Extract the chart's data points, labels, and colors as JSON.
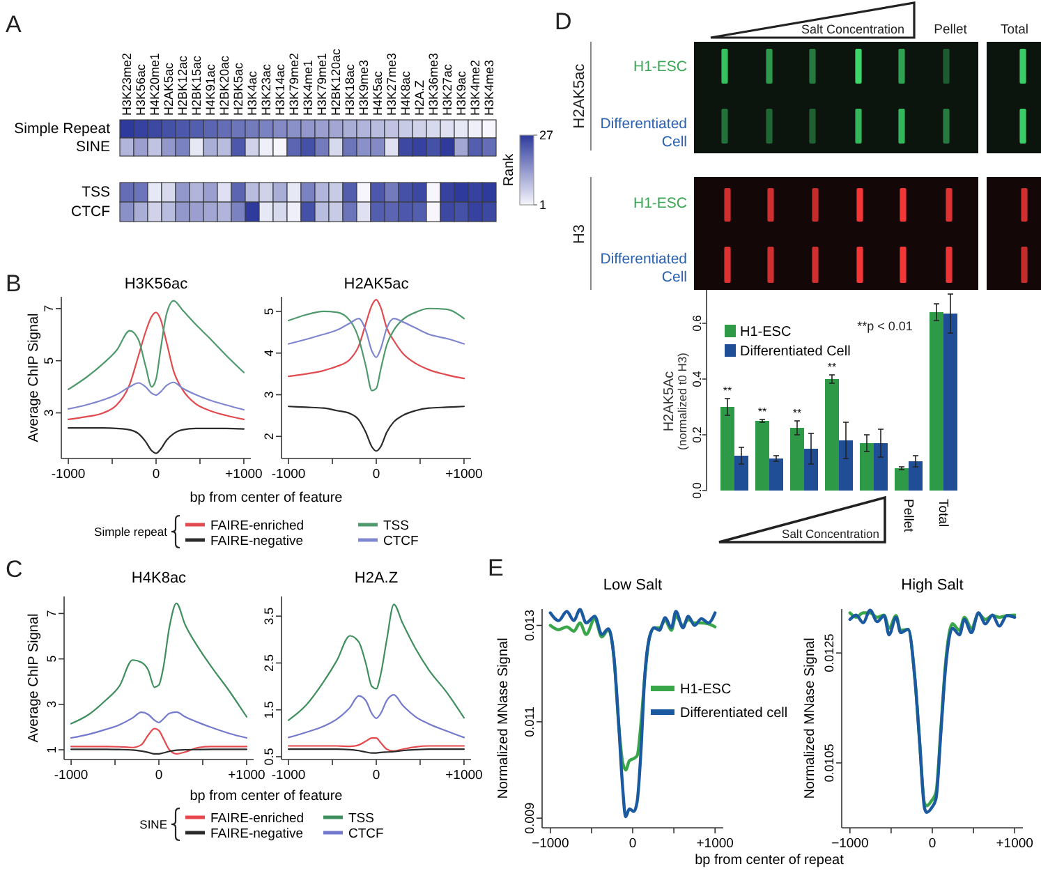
{
  "chart_data": [
    {
      "type": "heatmap",
      "categories": [
        "H3K23me2",
        "H3K56ac",
        "H4K20me1",
        "H2AK5ac",
        "H2BK12ac",
        "H2BK15ac",
        "H4K91ac",
        "H2BK20ac",
        "H2BK5ac",
        "H3K4ac",
        "H3K23ac",
        "H3K14ac",
        "H3K79me2",
        "H3K4me1",
        "H3K79me1",
        "H2BK120ac",
        "H3K18ac",
        "H3K9me3",
        "H4K5ac",
        "H3K27me3",
        "H4K8ac",
        "H2A.Z",
        "H3K36me3",
        "H3K27ac",
        "H3K9ac",
        "H3K4me2",
        "H3K4me3"
      ],
      "y_categories": [
        "Simple Repeat",
        "SINE",
        "TSS",
        "CTCF"
      ],
      "cells": [
        [
          27,
          26,
          25,
          24,
          23,
          22,
          21,
          20,
          19,
          18,
          17,
          16,
          15,
          14,
          13,
          12,
          11,
          10,
          9,
          8,
          7,
          6,
          5,
          4,
          3,
          2,
          1
        ],
        [
          10,
          13,
          8,
          14,
          17,
          3,
          11,
          9,
          23,
          6,
          2,
          1,
          21,
          24,
          18,
          5,
          19,
          15,
          16,
          4,
          25,
          26,
          24,
          27,
          12,
          22,
          20
        ],
        [
          20,
          19,
          3,
          5,
          14,
          10,
          13,
          4,
          21,
          9,
          6,
          11,
          3,
          17,
          10,
          7,
          22,
          1,
          23,
          18,
          24,
          25,
          1,
          26,
          27,
          26,
          27
        ],
        [
          15,
          11,
          6,
          9,
          14,
          13,
          12,
          10,
          17,
          27,
          3,
          5,
          2,
          24,
          9,
          7,
          19,
          4,
          22,
          21,
          23,
          22,
          1,
          25,
          24,
          26,
          25
        ]
      ],
      "clim": [
        1,
        27
      ],
      "cticks": [
        1,
        27
      ],
      "clabel": "Rank",
      "annotations": [
        "A"
      ]
    },
    {
      "type": "line",
      "title": "H3K56ac",
      "xlabel": "bp from center of feature",
      "ylabel": "Average ChIP Signal",
      "legend_title": "Simple repeat",
      "legend": "bottom",
      "annotations": [
        "B"
      ],
      "x": [
        -1000,
        -800,
        -600,
        -450,
        -300,
        -200,
        -120,
        -50,
        0,
        50,
        120,
        200,
        300,
        450,
        600,
        800,
        1000
      ],
      "xlim": [
        -1080,
        1080
      ],
      "xticks": [
        {
          "value": -1000,
          "label": "-1000"
        },
        {
          "value": -500,
          "label": null
        },
        {
          "value": 0,
          "label": "0"
        },
        {
          "value": 500,
          "label": null
        },
        {
          "value": 1000,
          "label": "+1000"
        }
      ],
      "ylim": [
        1.25,
        7.45
      ],
      "yticks": [
        3,
        5,
        7
      ],
      "series": [
        {
          "name": "FAIRE-enriched",
          "color": "#e34a4f",
          "values": [
            2.75,
            2.85,
            3.0,
            3.3,
            4.1,
            5.2,
            6.1,
            6.7,
            6.85,
            6.6,
            5.7,
            4.6,
            3.9,
            3.35,
            3.1,
            2.9,
            2.75
          ]
        },
        {
          "name": "FAIRE-negative",
          "color": "#2b2b2b",
          "values": [
            2.42,
            2.42,
            2.42,
            2.4,
            2.35,
            2.2,
            1.9,
            1.55,
            1.45,
            1.6,
            1.95,
            2.2,
            2.35,
            2.4,
            2.4,
            2.4,
            2.38
          ]
        },
        {
          "name": "TSS",
          "color": "#4f9a6c",
          "values": [
            3.9,
            4.35,
            4.9,
            5.4,
            6.15,
            5.8,
            4.8,
            4.0,
            4.3,
            5.4,
            6.8,
            7.3,
            6.95,
            6.4,
            5.9,
            5.2,
            4.55
          ]
        },
        {
          "name": "CTCF",
          "color": "#7f86d0",
          "values": [
            3.15,
            3.3,
            3.5,
            3.7,
            4.0,
            4.15,
            4.0,
            3.75,
            3.68,
            3.8,
            4.05,
            4.17,
            3.95,
            3.7,
            3.5,
            3.3,
            3.12
          ]
        }
      ]
    },
    {
      "type": "line",
      "title": "H2AK5ac",
      "x": [
        -1000,
        -800,
        -600,
        -450,
        -300,
        -200,
        -120,
        -50,
        0,
        50,
        120,
        200,
        300,
        450,
        600,
        800,
        1000
      ],
      "xlim": [
        -1080,
        1080
      ],
      "xticks": [
        {
          "value": -1000,
          "label": "-1000"
        },
        {
          "value": -500,
          "label": null
        },
        {
          "value": 0,
          "label": "0"
        },
        {
          "value": 500,
          "label": null
        },
        {
          "value": 1000,
          "label": "+1000"
        }
      ],
      "ylim": [
        1.47,
        5.35
      ],
      "yticks": [
        2,
        3,
        4,
        5
      ],
      "series": [
        {
          "color": "#e34a4f",
          "values": [
            3.44,
            3.5,
            3.58,
            3.68,
            3.85,
            4.17,
            4.7,
            5.15,
            5.28,
            5.1,
            4.6,
            4.3,
            4.0,
            3.75,
            3.6,
            3.48,
            3.39
          ]
        },
        {
          "color": "#2b2b2b",
          "values": [
            2.72,
            2.7,
            2.68,
            2.62,
            2.55,
            2.4,
            2.1,
            1.75,
            1.65,
            1.75,
            2.1,
            2.35,
            2.5,
            2.62,
            2.68,
            2.7,
            2.72
          ]
        },
        {
          "color": "#4f9a6c",
          "values": [
            4.78,
            4.92,
            5.0,
            4.98,
            4.78,
            4.35,
            3.7,
            3.1,
            3.15,
            3.6,
            4.2,
            4.55,
            4.8,
            4.98,
            5.07,
            5.05,
            4.83
          ]
        },
        {
          "color": "#7f86d0",
          "values": [
            4.22,
            4.33,
            4.45,
            4.55,
            4.72,
            4.83,
            4.55,
            4.05,
            3.9,
            4.1,
            4.6,
            4.83,
            4.75,
            4.6,
            4.45,
            4.35,
            4.22
          ]
        }
      ]
    },
    {
      "type": "line",
      "title": "H4K8ac",
      "xlabel": "bp from center of feature",
      "ylabel": "Average ChIP Signal",
      "legend_title": "SINE",
      "legend": "bottom",
      "annotations": [
        "C"
      ],
      "x": [
        -1000,
        -800,
        -600,
        -450,
        -300,
        -200,
        -120,
        -50,
        0,
        50,
        120,
        200,
        300,
        450,
        600,
        800,
        1000
      ],
      "xlim": [
        -1080,
        1080
      ],
      "xticks": [
        {
          "value": -1000,
          "label": "-1000"
        },
        {
          "value": -500,
          "label": null
        },
        {
          "value": 0,
          "label": "0"
        },
        {
          "value": 500,
          "label": null
        },
        {
          "value": 1000,
          "label": "+1000"
        }
      ],
      "ylim": [
        0.57,
        7.75
      ],
      "yticks": [
        1,
        3,
        5,
        7
      ],
      "series": [
        {
          "name": "FAIRE-enriched",
          "color": "#e5484d",
          "values": [
            1.14,
            1.14,
            1.14,
            1.13,
            1.1,
            1.22,
            1.65,
            1.93,
            1.85,
            1.5,
            1.0,
            0.82,
            0.9,
            1.1,
            1.14,
            1.14,
            1.14
          ]
        },
        {
          "name": "FAIRE-negative",
          "color": "#2b2b2b",
          "values": [
            1.02,
            1.02,
            1.02,
            1.01,
            0.99,
            0.94,
            0.88,
            0.82,
            0.82,
            0.86,
            0.93,
            0.98,
            1.0,
            1.01,
            1.02,
            1.02,
            1.02
          ]
        },
        {
          "name": "TSS",
          "color": "#3f8f5e",
          "values": [
            2.15,
            2.55,
            3.2,
            3.8,
            4.95,
            4.85,
            4.5,
            3.75,
            3.85,
            4.6,
            6.4,
            7.45,
            6.5,
            5.5,
            4.65,
            3.6,
            2.45
          ]
        },
        {
          "name": "CTCF",
          "color": "#7379cc",
          "values": [
            1.52,
            1.68,
            1.9,
            2.1,
            2.4,
            2.65,
            2.55,
            2.3,
            2.2,
            2.35,
            2.6,
            2.66,
            2.45,
            2.2,
            1.98,
            1.72,
            1.52
          ]
        }
      ]
    },
    {
      "type": "line",
      "title": "H2A.Z",
      "x": [
        -1000,
        -800,
        -600,
        -450,
        -300,
        -200,
        -120,
        -50,
        0,
        50,
        120,
        200,
        300,
        450,
        600,
        800,
        1000
      ],
      "xlim": [
        -1080,
        1080
      ],
      "xticks": [
        {
          "value": -1000,
          "label": "-1000"
        },
        {
          "value": -500,
          "label": null
        },
        {
          "value": 0,
          "label": "0"
        },
        {
          "value": 500,
          "label": null
        },
        {
          "value": 1000,
          "label": "+1000"
        }
      ],
      "ylim": [
        0.44,
        3.92
      ],
      "yticks": [
        0.5,
        1.5,
        2.5,
        3.5
      ],
      "series": [
        {
          "color": "#e5484d",
          "values": [
            0.73,
            0.73,
            0.73,
            0.73,
            0.72,
            0.75,
            0.83,
            0.9,
            0.9,
            0.8,
            0.66,
            0.62,
            0.66,
            0.71,
            0.73,
            0.73,
            0.73
          ]
        },
        {
          "color": "#2b2b2b",
          "values": [
            0.66,
            0.66,
            0.66,
            0.66,
            0.65,
            0.63,
            0.6,
            0.58,
            0.58,
            0.59,
            0.6,
            0.61,
            0.63,
            0.65,
            0.66,
            0.66,
            0.66
          ]
        },
        {
          "color": "#3f8f5e",
          "values": [
            1.28,
            1.6,
            2.1,
            2.55,
            3.08,
            2.95,
            2.5,
            2.0,
            1.95,
            2.25,
            3.0,
            3.75,
            3.35,
            2.8,
            2.35,
            1.88,
            1.33
          ]
        },
        {
          "color": "#7379cc",
          "values": [
            0.91,
            1.02,
            1.15,
            1.3,
            1.55,
            1.8,
            1.7,
            1.42,
            1.32,
            1.42,
            1.7,
            1.82,
            1.6,
            1.35,
            1.2,
            1.05,
            0.91
          ]
        }
      ]
    },
    {
      "type": "other",
      "annotations": [
        "D",
        "Salt Concentration",
        "Pellet",
        "Total",
        "H2AK5ac",
        "H1-ESC",
        "Differentiated Cell",
        "H3",
        "H1-ESC",
        "Differentiated Cell"
      ]
    },
    {
      "type": "bar",
      "categories": [
        null,
        null,
        null,
        null,
        null,
        "Pellet",
        "Total"
      ],
      "ylabel": "H2AK5Ac\n(normalized t0 H3)",
      "legend": "top left",
      "annotations": [
        "**p < 0.01",
        "Salt Concentration"
      ],
      "ylim": [
        0,
        0.72
      ],
      "yticks": [
        {
          "value": 0,
          "label": "0.0"
        },
        0.2,
        0.4,
        0.6
      ],
      "series": [
        {
          "name": "H1-ESC",
          "color": "#2e9a48",
          "values": [
            0.3,
            0.25,
            0.225,
            0.4,
            0.17,
            0.08,
            0.64
          ],
          "errors": [
            0.03,
            0.005,
            0.025,
            0.015,
            0.03,
            0.005,
            0.03
          ],
          "value_labels": [
            "**",
            "**",
            "**",
            "**",
            null,
            null,
            null
          ]
        },
        {
          "name": "Differentiated Cell",
          "color": "#1f4e96",
          "values": [
            0.125,
            0.115,
            0.15,
            0.18,
            0.17,
            0.105,
            0.635
          ],
          "errors": [
            0.03,
            0.01,
            0.055,
            0.065,
            0.05,
            0.02,
            0.07
          ]
        }
      ]
    },
    {
      "type": "line",
      "title": "Low Salt",
      "xlabel": "bp from center of repeat",
      "ylabel": "Normalized MNase Signal",
      "legend": "right",
      "annotations": [
        "E"
      ],
      "xlim": [
        -1100,
        1100
      ],
      "xticks": [
        {
          "value": -1000,
          "label": "−1000"
        },
        {
          "value": -500,
          "label": null
        },
        {
          "value": 0,
          "label": "0"
        },
        {
          "value": 500,
          "label": null
        },
        {
          "value": 1000,
          "label": "+1000"
        }
      ],
      "ylim": [
        0.0088,
        0.01334
      ],
      "yticks": [
        0.009,
        0.011,
        0.013
      ],
      "series": [
        {
          "name": "H1-ESC",
          "color": "#3aa64a",
          "x": [
            -1000,
            -900,
            -800,
            -715,
            -640,
            -565,
            -460,
            -375,
            -295,
            -225,
            -170,
            -125,
            -85,
            -40,
            15,
            55,
            100,
            145,
            205,
            260,
            325,
            395,
            470,
            525,
            610,
            675,
            750,
            835,
            920,
            1000
          ],
          "values": [
            0.013,
            0.01291,
            0.01297,
            0.01288,
            0.01305,
            0.01281,
            0.01314,
            0.01276,
            0.01291,
            0.01229,
            0.01095,
            0.01019,
            0.01,
            0.01019,
            0.01024,
            0.0103,
            0.01095,
            0.0119,
            0.01276,
            0.01295,
            0.01295,
            0.0131,
            0.0129,
            0.01319,
            0.013,
            0.01312,
            0.01305,
            0.01305,
            0.01303,
            0.01297
          ]
        },
        {
          "name": "Differentiated cell",
          "color": "#1b5aa0",
          "x": [
            -1000,
            -900,
            -800,
            -715,
            -640,
            -565,
            -460,
            -375,
            -295,
            -225,
            -170,
            -125,
            -85,
            -40,
            15,
            55,
            100,
            145,
            205,
            260,
            325,
            395,
            470,
            525,
            610,
            675,
            750,
            835,
            920,
            1000
          ],
          "values": [
            0.01326,
            0.0131,
            0.01329,
            0.0131,
            0.01333,
            0.01305,
            0.01319,
            0.01281,
            0.01293,
            0.01229,
            0.01095,
            0.00971,
            0.00903,
            0.00919,
            0.00914,
            0.00935,
            0.01038,
            0.0119,
            0.01276,
            0.01295,
            0.0129,
            0.01316,
            0.01295,
            0.01329,
            0.01295,
            0.01319,
            0.013,
            0.01314,
            0.01305,
            0.01326
          ]
        }
      ]
    },
    {
      "type": "line",
      "title": "High Salt",
      "ylabel": "Normalized MNase Signal",
      "xlim": [
        -1100,
        1100
      ],
      "xticks": [
        {
          "value": -1000,
          "label": "−1000"
        },
        {
          "value": -500,
          "label": null
        },
        {
          "value": 0,
          "label": "0"
        },
        {
          "value": 500,
          "label": null
        },
        {
          "value": 1000,
          "label": "+1000"
        }
      ],
      "ylim": [
        0.00932,
        0.0133
      ],
      "yticks": [
        0.0105,
        0.0125
      ],
      "series": [
        {
          "color": "#3aa64a",
          "x": [
            -1000,
            -925,
            -840,
            -755,
            -670,
            -585,
            -525,
            -440,
            -385,
            -295,
            -210,
            -155,
            -95,
            -70,
            -10,
            45,
            105,
            160,
            245,
            330,
            390,
            475,
            560,
            645,
            730,
            815,
            905,
            1000
          ],
          "values": [
            0.01323,
            0.01315,
            0.01323,
            0.01323,
            0.01315,
            0.01319,
            0.01295,
            0.01318,
            0.01291,
            0.01293,
            0.01201,
            0.01091,
            0.00977,
            0.00972,
            0.00981,
            0.00997,
            0.01115,
            0.0123,
            0.01303,
            0.01291,
            0.01315,
            0.01295,
            0.01321,
            0.01311,
            0.01318,
            0.01315,
            0.01318,
            0.01319
          ]
        },
        {
          "color": "#1b5aa0",
          "x": [
            -1000,
            -925,
            -840,
            -755,
            -670,
            -585,
            -525,
            -440,
            -385,
            -295,
            -210,
            -155,
            -95,
            -70,
            -10,
            45,
            105,
            160,
            245,
            330,
            390,
            475,
            560,
            645,
            730,
            815,
            905,
            1000
          ],
          "values": [
            0.01311,
            0.01319,
            0.01305,
            0.01328,
            0.01307,
            0.01318,
            0.01283,
            0.01315,
            0.01287,
            0.01293,
            0.01201,
            0.01091,
            0.00968,
            0.0096,
            0.00968,
            0.00985,
            0.01107,
            0.01221,
            0.01295,
            0.01283,
            0.01311,
            0.01287,
            0.01323,
            0.01303,
            0.01319,
            0.01299,
            0.01318,
            0.01315
          ]
        }
      ]
    }
  ]
}
